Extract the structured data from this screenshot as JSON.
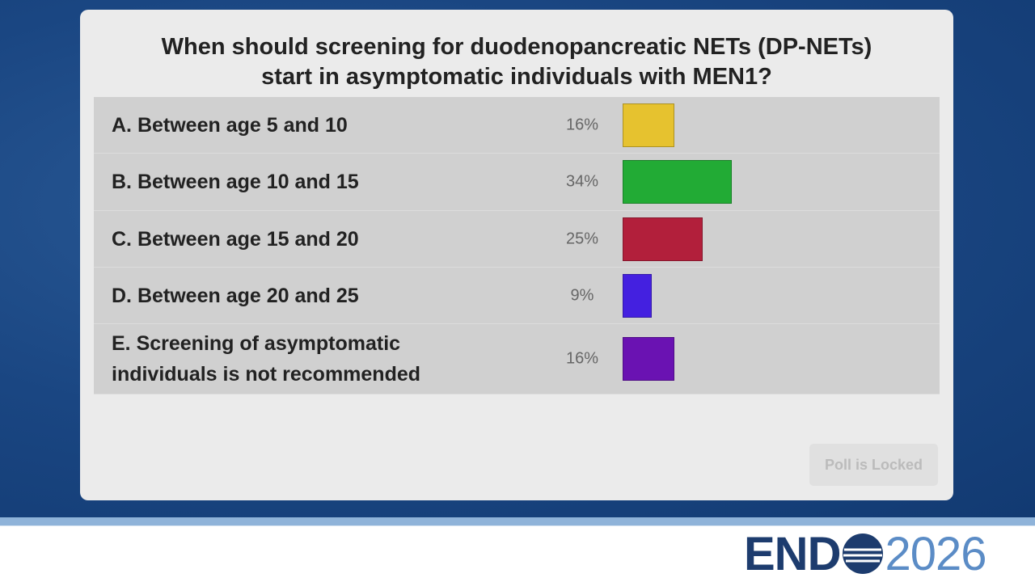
{
  "chart_data": {
    "type": "bar",
    "title": "When should screening for duodenopancreatic NETs (DP-NETs) start in asymptomatic individuals with MEN1?",
    "categories": [
      "A. Between age 5 and 10",
      "B. Between age 10 and 15",
      "C. Between age 15 and 20",
      "D. Between age 20 and 25",
      "E. Screening of asymptomatic individuals is not recommended"
    ],
    "values": [
      16,
      34,
      25,
      9,
      16
    ],
    "value_labels": [
      "16%",
      "34%",
      "25%",
      "9%",
      "16%"
    ],
    "colors": [
      "#e6c22f",
      "#22ab35",
      "#b21f3b",
      "#4420e0",
      "#6a12b2"
    ]
  },
  "button": "Poll is Locked",
  "logo": {
    "left": "END",
    "right": "2026"
  }
}
